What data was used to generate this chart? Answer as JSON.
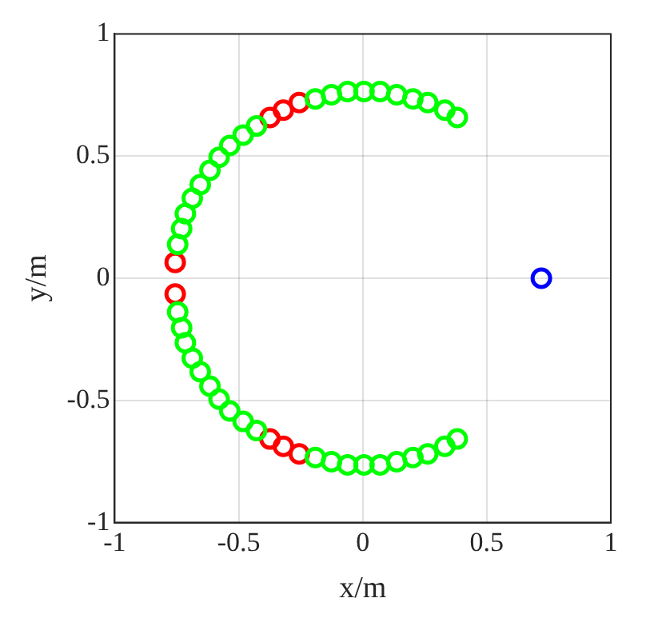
{
  "chart_data": {
    "type": "scatter",
    "xlabel": "x/m",
    "ylabel": "y/m",
    "xlim": [
      -1,
      1
    ],
    "ylim": [
      -1,
      1
    ],
    "xticks": [
      -1,
      -0.5,
      0,
      0.5,
      1
    ],
    "yticks": [
      -1,
      -0.5,
      0,
      0.5,
      1
    ],
    "grid": true,
    "marker": "circle",
    "legend": false,
    "series": [
      {
        "color": "#00ff00",
        "x": [
          0.381,
          0.331,
          0.262,
          0.202,
          0.137,
          0.07,
          0.005,
          -0.061,
          -0.126,
          -0.191,
          -0.428,
          -0.482,
          -0.536,
          -0.579,
          -0.616,
          -0.655,
          -0.687,
          -0.715,
          -0.73,
          -0.746,
          -0.746,
          -0.73,
          -0.715,
          -0.687,
          -0.655,
          -0.616,
          -0.579,
          -0.536,
          -0.482,
          -0.428,
          -0.191,
          -0.126,
          -0.061,
          0.005,
          0.07,
          0.137,
          0.202,
          0.262,
          0.331,
          0.381
        ],
        "values": [
          0.658,
          0.688,
          0.719,
          0.734,
          0.751,
          0.764,
          0.764,
          0.764,
          0.751,
          0.734,
          0.623,
          0.586,
          0.543,
          0.495,
          0.442,
          0.383,
          0.327,
          0.264,
          0.203,
          0.138,
          -0.138,
          -0.203,
          -0.264,
          -0.327,
          -0.383,
          -0.442,
          -0.495,
          -0.543,
          -0.586,
          -0.623,
          -0.734,
          -0.751,
          -0.764,
          -0.764,
          -0.764,
          -0.751,
          -0.734,
          -0.719,
          -0.688,
          -0.658
        ]
      },
      {
        "color": "#ff0000",
        "x": [
          -0.256,
          -0.32,
          -0.374,
          -0.756,
          -0.756,
          -0.374,
          -0.32,
          -0.256
        ],
        "values": [
          0.719,
          0.688,
          0.658,
          0.065,
          -0.065,
          -0.658,
          -0.688,
          -0.719
        ]
      },
      {
        "color": "#0000ff",
        "x": [
          0.72
        ],
        "values": [
          0
        ]
      }
    ]
  }
}
